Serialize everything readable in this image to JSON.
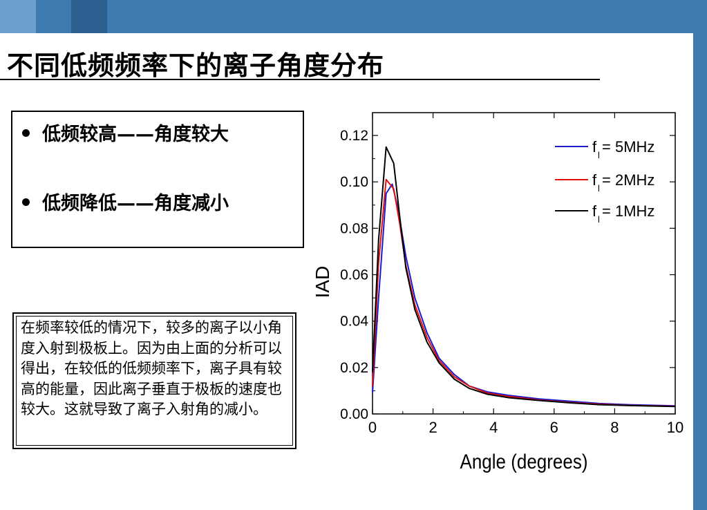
{
  "title": "不同低频频率下的离子角度分布",
  "bullets": [
    "低频较高——角度较大",
    "低频降低——角度减小"
  ],
  "note": "在频率较低的情况下，较多的离子以小角度入射到极板上。因为由上面的分析可以得出，在较低的低频频率下，离子具有较高的能量，因此离子垂直于极板的速度也较大。这就导致了离子入射角的减小。",
  "colors": {
    "blue": "#1a1acc",
    "red": "#e01010",
    "black": "#000000",
    "band": "#3e7ab0"
  },
  "chart_data": {
    "type": "line",
    "xlabel": "Angle (degrees)",
    "ylabel": "IAD",
    "xlim": [
      0,
      10
    ],
    "ylim": [
      0,
      0.13
    ],
    "xticks": [
      "0",
      "2",
      "4",
      "6",
      "8",
      "10"
    ],
    "yticks": [
      "0.00",
      "0.02",
      "0.04",
      "0.06",
      "0.08",
      "0.10",
      "0.12"
    ],
    "legend_position": "top-right",
    "series": [
      {
        "name_main": "f",
        "name_sub": "l",
        "name_rest": " = 5MHz",
        "color": "#1a1acc",
        "x": [
          0,
          0.2,
          0.45,
          0.65,
          0.85,
          1.1,
          1.4,
          1.8,
          2.2,
          2.7,
          3.2,
          3.8,
          4.5,
          5.5,
          6.5,
          7.5,
          8.5,
          10
        ],
        "y": [
          0.009,
          0.05,
          0.095,
          0.099,
          0.088,
          0.068,
          0.05,
          0.035,
          0.024,
          0.017,
          0.012,
          0.0095,
          0.008,
          0.0065,
          0.0055,
          0.0045,
          0.004,
          0.0035
        ]
      },
      {
        "name_main": "f",
        "name_sub": "l",
        "name_rest": " = 2MHz",
        "color": "#e01010",
        "x": [
          0,
          0.2,
          0.45,
          0.7,
          0.9,
          1.1,
          1.4,
          1.8,
          2.2,
          2.7,
          3.2,
          3.8,
          4.5,
          5.5,
          6.5,
          7.5,
          8.5,
          10
        ],
        "y": [
          0.012,
          0.065,
          0.101,
          0.097,
          0.082,
          0.064,
          0.047,
          0.033,
          0.023,
          0.016,
          0.012,
          0.009,
          0.0075,
          0.006,
          0.005,
          0.0042,
          0.0037,
          0.0033
        ]
      },
      {
        "name_main": "f",
        "name_sub": "l",
        "name_rest": " = 1MHz",
        "color": "#000000",
        "x": [
          0,
          0.2,
          0.45,
          0.7,
          0.9,
          1.1,
          1.4,
          1.8,
          2.2,
          2.7,
          3.2,
          3.8,
          4.5,
          5.5,
          6.5,
          7.5,
          8.5,
          10
        ],
        "y": [
          0.018,
          0.075,
          0.115,
          0.108,
          0.085,
          0.063,
          0.045,
          0.031,
          0.022,
          0.015,
          0.011,
          0.0085,
          0.007,
          0.0058,
          0.0048,
          0.004,
          0.0036,
          0.0032
        ]
      }
    ]
  }
}
